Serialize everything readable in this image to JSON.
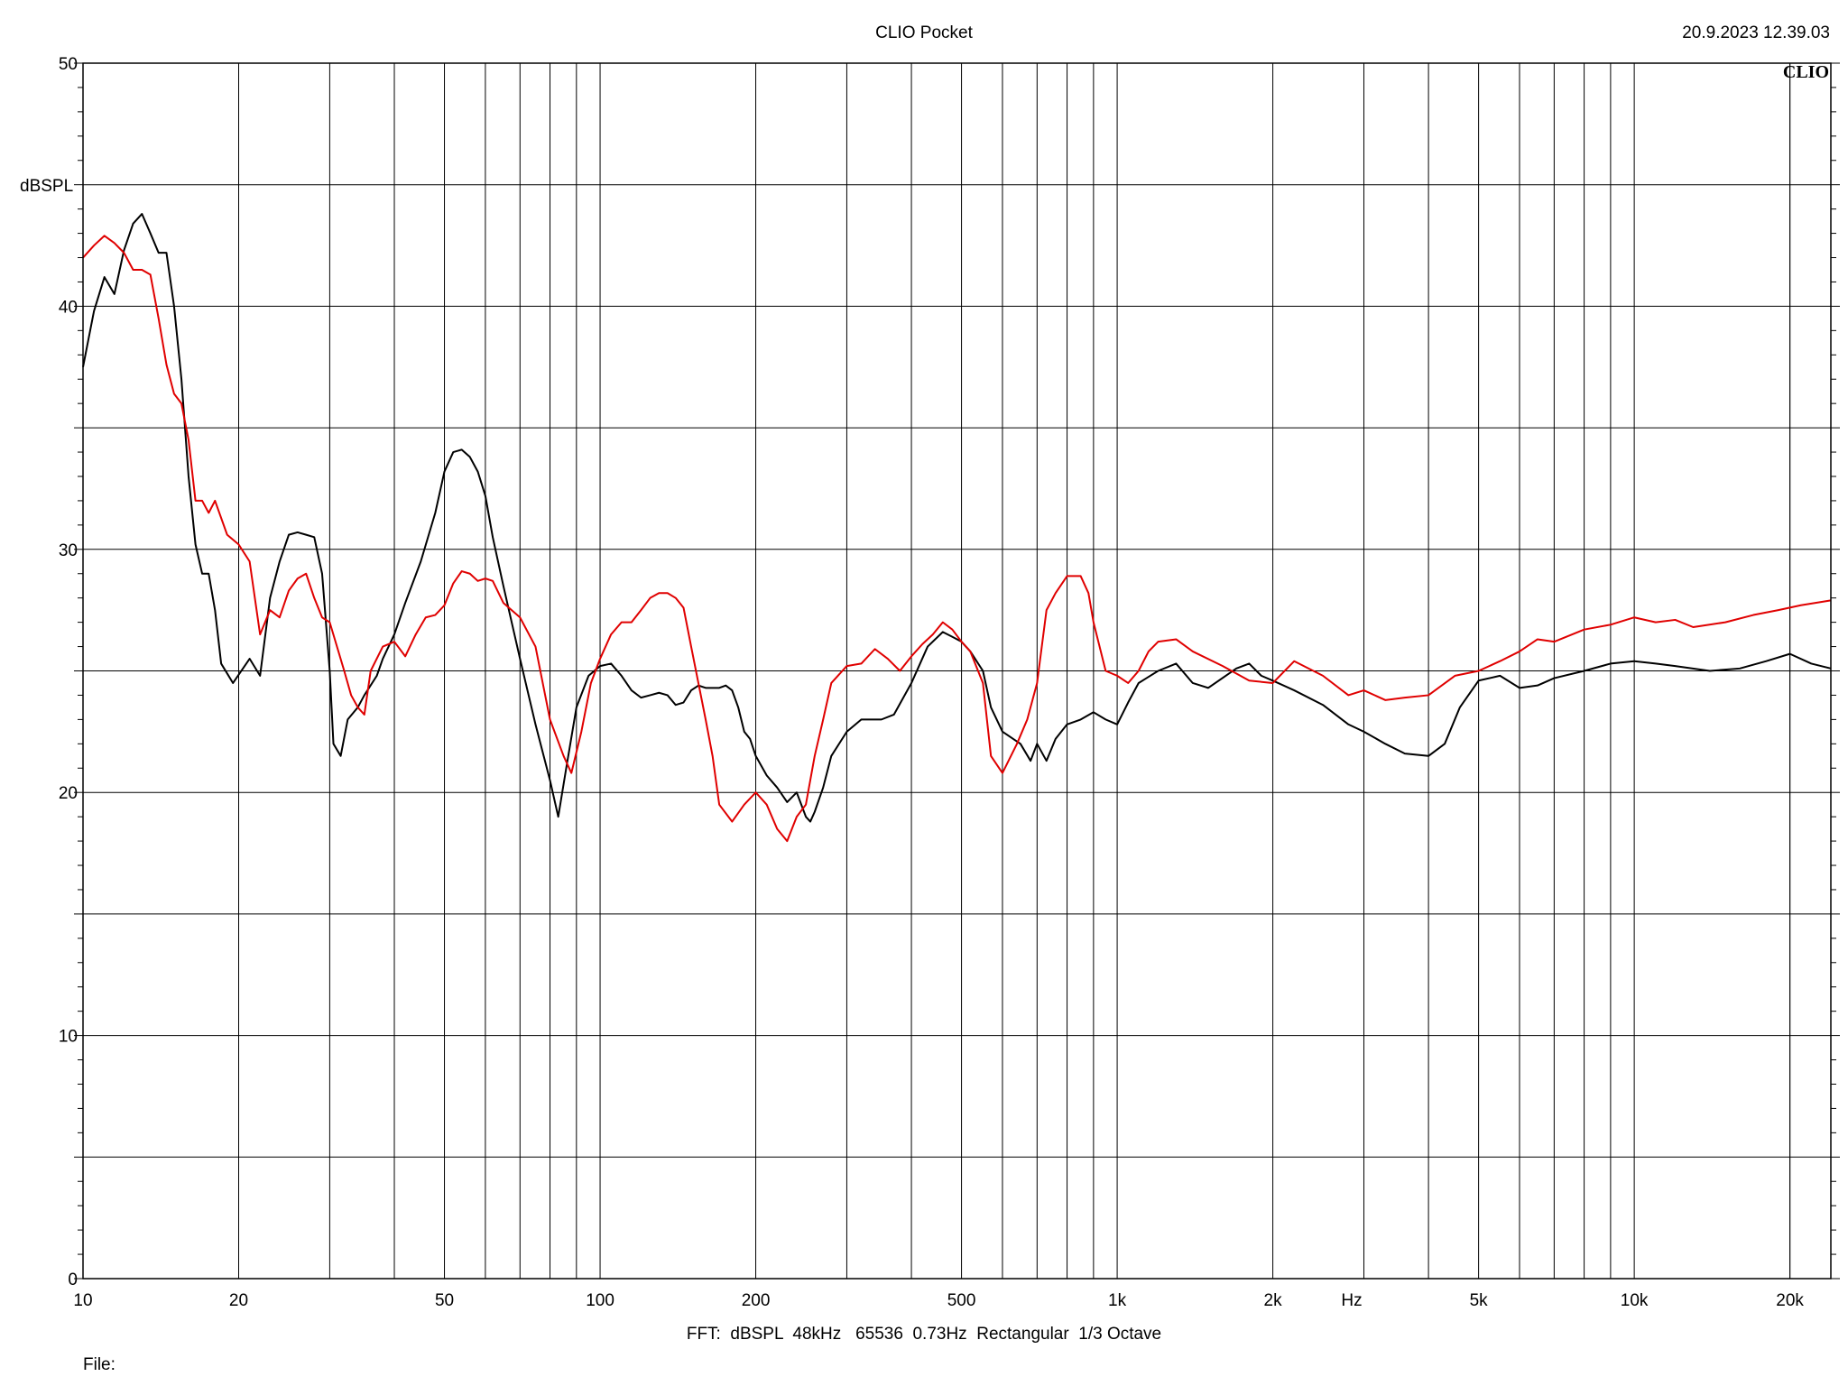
{
  "header": {
    "app_title": "CLIO Pocket",
    "timestamp": "20.9.2023 12.39.03",
    "brand": "CLIO"
  },
  "footer": {
    "settings": "FFT:  dBSPL  48kHz   65536  0.73Hz  Rectangular  1/3 Octave",
    "file_label": "File:"
  },
  "chart_data": {
    "type": "line",
    "xscale": "log",
    "xlim": [
      10,
      24000
    ],
    "ylim": [
      0,
      50
    ],
    "ylabel": "dBSPL",
    "xunit_label": "Hz",
    "grid": true,
    "x_ticks": [
      {
        "value": 10,
        "label": "10"
      },
      {
        "value": 20,
        "label": "20"
      },
      {
        "value": 50,
        "label": "50"
      },
      {
        "value": 100,
        "label": "100"
      },
      {
        "value": 200,
        "label": "200"
      },
      {
        "value": 500,
        "label": "500"
      },
      {
        "value": 1000,
        "label": "1k"
      },
      {
        "value": 2000,
        "label": "2k"
      },
      {
        "value": 5000,
        "label": "5k"
      },
      {
        "value": 10000,
        "label": "10k"
      },
      {
        "value": 20000,
        "label": "20k"
      }
    ],
    "y_ticks": [
      {
        "value": 0,
        "label": "0"
      },
      {
        "value": 10,
        "label": "10"
      },
      {
        "value": 20,
        "label": "20"
      },
      {
        "value": 30,
        "label": "30"
      },
      {
        "value": 40,
        "label": "40"
      },
      {
        "value": 50,
        "label": "50"
      }
    ],
    "series": [
      {
        "color": "#000000",
        "points": [
          [
            10,
            37.5
          ],
          [
            10.5,
            39.8
          ],
          [
            11,
            41.2
          ],
          [
            11.5,
            40.5
          ],
          [
            12,
            42.3
          ],
          [
            12.5,
            43.4
          ],
          [
            13,
            43.8
          ],
          [
            13.5,
            43.0
          ],
          [
            14,
            42.2
          ],
          [
            14.5,
            42.2
          ],
          [
            15,
            40.0
          ],
          [
            15.5,
            37.0
          ],
          [
            16,
            33.0
          ],
          [
            16.5,
            30.2
          ],
          [
            17,
            29.0
          ],
          [
            17.5,
            29.0
          ],
          [
            18,
            27.5
          ],
          [
            18.5,
            25.3
          ],
          [
            19.5,
            24.5
          ],
          [
            21,
            25.5
          ],
          [
            22,
            24.8
          ],
          [
            23,
            28.0
          ],
          [
            24,
            29.5
          ],
          [
            25,
            30.6
          ],
          [
            26,
            30.7
          ],
          [
            27,
            30.6
          ],
          [
            28,
            30.5
          ],
          [
            29,
            29.0
          ],
          [
            30,
            25.0
          ],
          [
            30.5,
            22.0
          ],
          [
            31.5,
            21.5
          ],
          [
            32.5,
            23.0
          ],
          [
            34,
            23.5
          ],
          [
            35,
            24.0
          ],
          [
            37,
            24.8
          ],
          [
            38,
            25.5
          ],
          [
            40,
            26.5
          ],
          [
            42,
            27.8
          ],
          [
            45,
            29.5
          ],
          [
            48,
            31.5
          ],
          [
            50,
            33.2
          ],
          [
            52,
            34.0
          ],
          [
            54,
            34.1
          ],
          [
            56,
            33.8
          ],
          [
            58,
            33.2
          ],
          [
            60,
            32.2
          ],
          [
            62,
            30.5
          ],
          [
            65,
            28.5
          ],
          [
            70,
            25.5
          ],
          [
            75,
            22.8
          ],
          [
            80,
            20.5
          ],
          [
            83,
            19.0
          ],
          [
            86,
            21.0
          ],
          [
            90,
            23.5
          ],
          [
            95,
            24.8
          ],
          [
            100,
            25.2
          ],
          [
            105,
            25.3
          ],
          [
            110,
            24.8
          ],
          [
            115,
            24.2
          ],
          [
            120,
            23.9
          ],
          [
            125,
            24.0
          ],
          [
            130,
            24.1
          ],
          [
            135,
            24.0
          ],
          [
            140,
            23.6
          ],
          [
            145,
            23.7
          ],
          [
            150,
            24.2
          ],
          [
            155,
            24.4
          ],
          [
            160,
            24.3
          ],
          [
            170,
            24.3
          ],
          [
            175,
            24.4
          ],
          [
            180,
            24.2
          ],
          [
            185,
            23.5
          ],
          [
            190,
            22.5
          ],
          [
            195,
            22.2
          ],
          [
            200,
            21.5
          ],
          [
            210,
            20.7
          ],
          [
            220,
            20.2
          ],
          [
            230,
            19.6
          ],
          [
            240,
            20.0
          ],
          [
            250,
            19.0
          ],
          [
            255,
            18.8
          ],
          [
            260,
            19.2
          ],
          [
            270,
            20.2
          ],
          [
            280,
            21.5
          ],
          [
            300,
            22.5
          ],
          [
            320,
            23.0
          ],
          [
            350,
            23.0
          ],
          [
            370,
            23.2
          ],
          [
            400,
            24.5
          ],
          [
            430,
            26.0
          ],
          [
            460,
            26.6
          ],
          [
            480,
            26.4
          ],
          [
            500,
            26.2
          ],
          [
            520,
            25.8
          ],
          [
            550,
            25.0
          ],
          [
            570,
            23.5
          ],
          [
            600,
            22.5
          ],
          [
            650,
            22.0
          ],
          [
            680,
            21.3
          ],
          [
            700,
            22.0
          ],
          [
            730,
            21.3
          ],
          [
            760,
            22.2
          ],
          [
            800,
            22.8
          ],
          [
            850,
            23.0
          ],
          [
            900,
            23.3
          ],
          [
            950,
            23.0
          ],
          [
            1000,
            22.8
          ],
          [
            1050,
            23.7
          ],
          [
            1100,
            24.5
          ],
          [
            1200,
            25.0
          ],
          [
            1300,
            25.3
          ],
          [
            1400,
            24.5
          ],
          [
            1500,
            24.3
          ],
          [
            1700,
            25.1
          ],
          [
            1800,
            25.3
          ],
          [
            1900,
            24.8
          ],
          [
            2000,
            24.6
          ],
          [
            2200,
            24.2
          ],
          [
            2500,
            23.6
          ],
          [
            2800,
            22.8
          ],
          [
            3000,
            22.5
          ],
          [
            3300,
            22.0
          ],
          [
            3600,
            21.6
          ],
          [
            4000,
            21.5
          ],
          [
            4300,
            22.0
          ],
          [
            4600,
            23.5
          ],
          [
            5000,
            24.6
          ],
          [
            5500,
            24.8
          ],
          [
            6000,
            24.3
          ],
          [
            6500,
            24.4
          ],
          [
            7000,
            24.7
          ],
          [
            8000,
            25.0
          ],
          [
            9000,
            25.3
          ],
          [
            10000,
            25.4
          ],
          [
            11000,
            25.3
          ],
          [
            12000,
            25.2
          ],
          [
            14000,
            25.0
          ],
          [
            16000,
            25.1
          ],
          [
            18000,
            25.4
          ],
          [
            20000,
            25.7
          ],
          [
            22000,
            25.3
          ],
          [
            24000,
            25.1
          ]
        ]
      },
      {
        "color": "#e00000",
        "points": [
          [
            10,
            42.0
          ],
          [
            10.5,
            42.5
          ],
          [
            11,
            42.9
          ],
          [
            11.5,
            42.6
          ],
          [
            12,
            42.2
          ],
          [
            12.5,
            41.5
          ],
          [
            13,
            41.5
          ],
          [
            13.5,
            41.3
          ],
          [
            14,
            39.5
          ],
          [
            14.5,
            37.6
          ],
          [
            15,
            36.4
          ],
          [
            15.5,
            36.0
          ],
          [
            16,
            34.5
          ],
          [
            16.5,
            32.0
          ],
          [
            17,
            32.0
          ],
          [
            17.5,
            31.5
          ],
          [
            18,
            32.0
          ],
          [
            19,
            30.6
          ],
          [
            20,
            30.2
          ],
          [
            21,
            29.5
          ],
          [
            22,
            26.5
          ],
          [
            23,
            27.5
          ],
          [
            24,
            27.2
          ],
          [
            25,
            28.3
          ],
          [
            26,
            28.8
          ],
          [
            27,
            29.0
          ],
          [
            28,
            28.0
          ],
          [
            29,
            27.2
          ],
          [
            30,
            27.0
          ],
          [
            32,
            25.0
          ],
          [
            33,
            24.0
          ],
          [
            34,
            23.5
          ],
          [
            35,
            23.2
          ],
          [
            36,
            25.0
          ],
          [
            38,
            26.0
          ],
          [
            40,
            26.2
          ],
          [
            42,
            25.6
          ],
          [
            44,
            26.5
          ],
          [
            46,
            27.2
          ],
          [
            48,
            27.3
          ],
          [
            50,
            27.7
          ],
          [
            52,
            28.6
          ],
          [
            54,
            29.1
          ],
          [
            56,
            29.0
          ],
          [
            58,
            28.7
          ],
          [
            60,
            28.8
          ],
          [
            62,
            28.7
          ],
          [
            65,
            27.8
          ],
          [
            70,
            27.2
          ],
          [
            75,
            26.0
          ],
          [
            80,
            23.0
          ],
          [
            85,
            21.5
          ],
          [
            88,
            20.8
          ],
          [
            92,
            22.5
          ],
          [
            96,
            24.5
          ],
          [
            100,
            25.5
          ],
          [
            105,
            26.5
          ],
          [
            110,
            27.0
          ],
          [
            115,
            27.0
          ],
          [
            120,
            27.5
          ],
          [
            125,
            28.0
          ],
          [
            130,
            28.2
          ],
          [
            135,
            28.2
          ],
          [
            140,
            28.0
          ],
          [
            145,
            27.6
          ],
          [
            150,
            26.0
          ],
          [
            160,
            23.0
          ],
          [
            165,
            21.5
          ],
          [
            170,
            19.5
          ],
          [
            180,
            18.8
          ],
          [
            190,
            19.5
          ],
          [
            200,
            20.0
          ],
          [
            210,
            19.5
          ],
          [
            220,
            18.5
          ],
          [
            230,
            18.0
          ],
          [
            240,
            19.0
          ],
          [
            250,
            19.5
          ],
          [
            260,
            21.5
          ],
          [
            270,
            23.0
          ],
          [
            280,
            24.5
          ],
          [
            300,
            25.2
          ],
          [
            320,
            25.3
          ],
          [
            340,
            25.9
          ],
          [
            360,
            25.5
          ],
          [
            380,
            25.0
          ],
          [
            400,
            25.6
          ],
          [
            420,
            26.1
          ],
          [
            440,
            26.5
          ],
          [
            460,
            27.0
          ],
          [
            480,
            26.7
          ],
          [
            500,
            26.2
          ],
          [
            520,
            25.8
          ],
          [
            550,
            24.5
          ],
          [
            570,
            21.5
          ],
          [
            600,
            20.8
          ],
          [
            640,
            22.0
          ],
          [
            670,
            23.0
          ],
          [
            700,
            24.5
          ],
          [
            730,
            27.5
          ],
          [
            760,
            28.2
          ],
          [
            800,
            28.9
          ],
          [
            850,
            28.9
          ],
          [
            880,
            28.2
          ],
          [
            900,
            27.0
          ],
          [
            950,
            25.0
          ],
          [
            1000,
            24.8
          ],
          [
            1050,
            24.5
          ],
          [
            1100,
            25.0
          ],
          [
            1150,
            25.8
          ],
          [
            1200,
            26.2
          ],
          [
            1300,
            26.3
          ],
          [
            1400,
            25.8
          ],
          [
            1600,
            25.2
          ],
          [
            1800,
            24.6
          ],
          [
            2000,
            24.5
          ],
          [
            2200,
            25.4
          ],
          [
            2500,
            24.8
          ],
          [
            2800,
            24.0
          ],
          [
            3000,
            24.2
          ],
          [
            3300,
            23.8
          ],
          [
            3600,
            23.9
          ],
          [
            4000,
            24.0
          ],
          [
            4500,
            24.8
          ],
          [
            5000,
            25.0
          ],
          [
            5500,
            25.4
          ],
          [
            6000,
            25.8
          ],
          [
            6500,
            26.3
          ],
          [
            7000,
            26.2
          ],
          [
            8000,
            26.7
          ],
          [
            9000,
            26.9
          ],
          [
            10000,
            27.2
          ],
          [
            11000,
            27.0
          ],
          [
            12000,
            27.1
          ],
          [
            13000,
            26.8
          ],
          [
            15000,
            27.0
          ],
          [
            17000,
            27.3
          ],
          [
            19000,
            27.5
          ],
          [
            21000,
            27.7
          ],
          [
            24000,
            27.9
          ]
        ]
      }
    ]
  }
}
